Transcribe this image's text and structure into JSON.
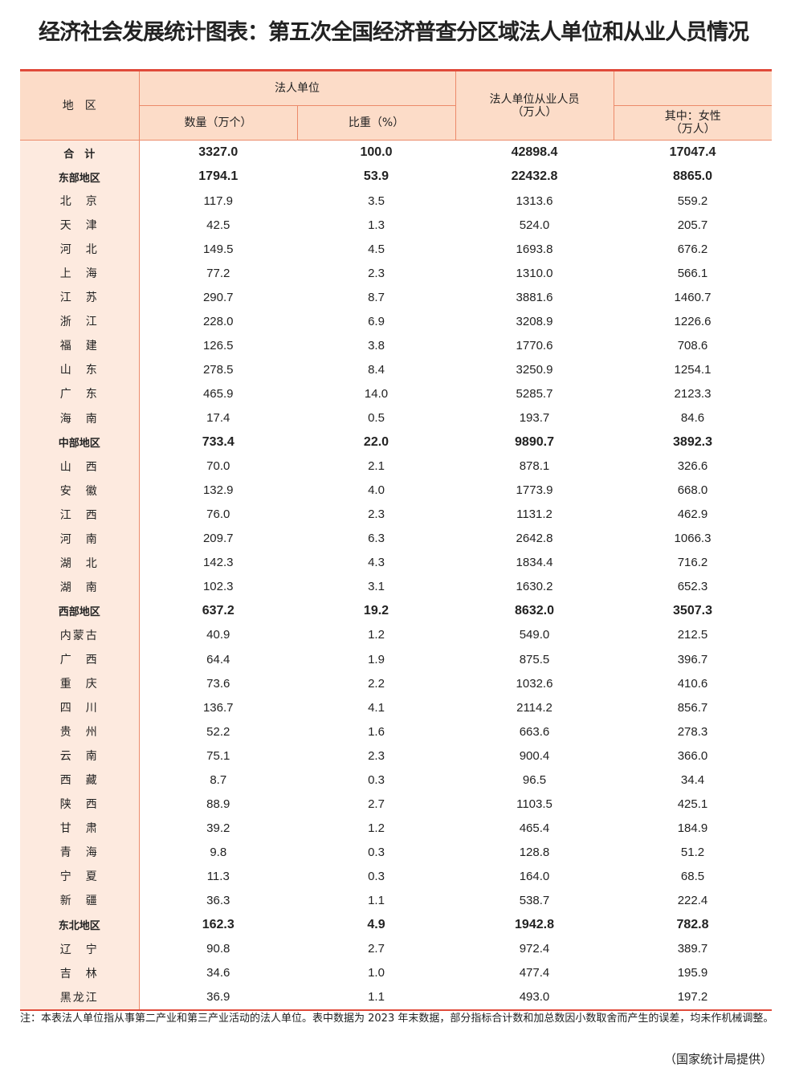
{
  "title": "经济社会发展统计图表：第五次全国经济普查分区域法人单位和从业人员情况",
  "header": {
    "region": "地　区",
    "unit_group": "法人单位",
    "count": "数量（万个）",
    "share": "比重（%）",
    "employees": "法人单位从业人员\n（万人）",
    "female": "其中：女性\n（万人）"
  },
  "rows": [
    {
      "r": "合　计",
      "v": [
        "3327.0",
        "100.0",
        "42898.4",
        "17047.4"
      ],
      "bold": true
    },
    {
      "r": "东部地区",
      "v": [
        "1794.1",
        "53.9",
        "22432.8",
        "8865.0"
      ],
      "bold": true
    },
    {
      "r": "北　京",
      "v": [
        "117.9",
        "3.5",
        "1313.6",
        "559.2"
      ]
    },
    {
      "r": "天　津",
      "v": [
        "42.5",
        "1.3",
        "524.0",
        "205.7"
      ]
    },
    {
      "r": "河　北",
      "v": [
        "149.5",
        "4.5",
        "1693.8",
        "676.2"
      ]
    },
    {
      "r": "上　海",
      "v": [
        "77.2",
        "2.3",
        "1310.0",
        "566.1"
      ]
    },
    {
      "r": "江　苏",
      "v": [
        "290.7",
        "8.7",
        "3881.6",
        "1460.7"
      ]
    },
    {
      "r": "浙　江",
      "v": [
        "228.0",
        "6.9",
        "3208.9",
        "1226.6"
      ]
    },
    {
      "r": "福　建",
      "v": [
        "126.5",
        "3.8",
        "1770.6",
        "708.6"
      ]
    },
    {
      "r": "山　东",
      "v": [
        "278.5",
        "8.4",
        "3250.9",
        "1254.1"
      ]
    },
    {
      "r": "广　东",
      "v": [
        "465.9",
        "14.0",
        "5285.7",
        "2123.3"
      ]
    },
    {
      "r": "海　南",
      "v": [
        "17.4",
        "0.5",
        "193.7",
        "84.6"
      ]
    },
    {
      "r": "中部地区",
      "v": [
        "733.4",
        "22.0",
        "9890.7",
        "3892.3"
      ],
      "bold": true
    },
    {
      "r": "山　西",
      "v": [
        "70.0",
        "2.1",
        "878.1",
        "326.6"
      ]
    },
    {
      "r": "安　徽",
      "v": [
        "132.9",
        "4.0",
        "1773.9",
        "668.0"
      ]
    },
    {
      "r": "江　西",
      "v": [
        "76.0",
        "2.3",
        "1131.2",
        "462.9"
      ]
    },
    {
      "r": "河　南",
      "v": [
        "209.7",
        "6.3",
        "2642.8",
        "1066.3"
      ]
    },
    {
      "r": "湖　北",
      "v": [
        "142.3",
        "4.3",
        "1834.4",
        "716.2"
      ]
    },
    {
      "r": "湖　南",
      "v": [
        "102.3",
        "3.1",
        "1630.2",
        "652.3"
      ]
    },
    {
      "r": "西部地区",
      "v": [
        "637.2",
        "19.2",
        "8632.0",
        "3507.3"
      ],
      "bold": true
    },
    {
      "r": "内蒙古",
      "v": [
        "40.9",
        "1.2",
        "549.0",
        "212.5"
      ]
    },
    {
      "r": "广　西",
      "v": [
        "64.4",
        "1.9",
        "875.5",
        "396.7"
      ]
    },
    {
      "r": "重　庆",
      "v": [
        "73.6",
        "2.2",
        "1032.6",
        "410.6"
      ]
    },
    {
      "r": "四　川",
      "v": [
        "136.7",
        "4.1",
        "2114.2",
        "856.7"
      ]
    },
    {
      "r": "贵　州",
      "v": [
        "52.2",
        "1.6",
        "663.6",
        "278.3"
      ]
    },
    {
      "r": "云　南",
      "v": [
        "75.1",
        "2.3",
        "900.4",
        "366.0"
      ]
    },
    {
      "r": "西　藏",
      "v": [
        "8.7",
        "0.3",
        "96.5",
        "34.4"
      ]
    },
    {
      "r": "陕　西",
      "v": [
        "88.9",
        "2.7",
        "1103.5",
        "425.1"
      ]
    },
    {
      "r": "甘　肃",
      "v": [
        "39.2",
        "1.2",
        "465.4",
        "184.9"
      ]
    },
    {
      "r": "青　海",
      "v": [
        "9.8",
        "0.3",
        "128.8",
        "51.2"
      ]
    },
    {
      "r": "宁　夏",
      "v": [
        "11.3",
        "0.3",
        "164.0",
        "68.5"
      ]
    },
    {
      "r": "新　疆",
      "v": [
        "36.3",
        "1.1",
        "538.7",
        "222.4"
      ]
    },
    {
      "r": "东北地区",
      "v": [
        "162.3",
        "4.9",
        "1942.8",
        "782.8"
      ],
      "bold": true
    },
    {
      "r": "辽　宁",
      "v": [
        "90.8",
        "2.7",
        "972.4",
        "389.7"
      ]
    },
    {
      "r": "吉　林",
      "v": [
        "34.6",
        "1.0",
        "477.4",
        "195.9"
      ]
    },
    {
      "r": "黑龙江",
      "v": [
        "36.9",
        "1.1",
        "493.0",
        "197.2"
      ]
    }
  ],
  "note": "注：本表法人单位指从事第二产业和第三产业活动的法人单位。表中数据为 2023 年末数据，部分指标合计数和加总数因小数取舍而产生的误差，均未作机械调整。",
  "source": "（国家统计局提供）",
  "colors": {
    "header_bg": "#fcdcc8",
    "region_bg": "#fdeadf",
    "rule": "#e04a3a"
  }
}
